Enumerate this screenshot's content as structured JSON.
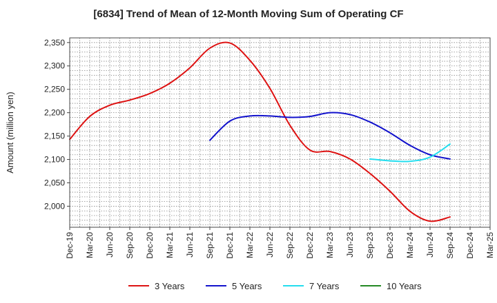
{
  "chart_data": {
    "type": "line",
    "title": "[6834]  Trend of Mean of 12-Month Moving Sum of Operating CF",
    "xlabel": "",
    "ylabel": "Amount (million yen)",
    "ylim": [
      1955,
      2360
    ],
    "yticks": [
      2000,
      2050,
      2100,
      2150,
      2200,
      2250,
      2300,
      2350
    ],
    "grid": true,
    "legend_position": "bottom",
    "categories": [
      "Dec-19",
      "Mar-20",
      "Jun-20",
      "Sep-20",
      "Dec-20",
      "Mar-21",
      "Jun-21",
      "Sep-21",
      "Dec-21",
      "Mar-22",
      "Jun-22",
      "Sep-22",
      "Dec-22",
      "Mar-23",
      "Jun-23",
      "Sep-23",
      "Dec-23",
      "Mar-24",
      "Jun-24",
      "Sep-24",
      "Dec-24",
      "Mar-25"
    ],
    "series": [
      {
        "name": "3 Years",
        "color": "#dd1111",
        "values": [
          2143,
          2192,
          2216,
          2227,
          2241,
          2263,
          2296,
          2338,
          2349,
          2312,
          2252,
          2173,
          2120,
          2117,
          2101,
          2070,
          2032,
          1989,
          1968,
          1977,
          null,
          null
        ]
      },
      {
        "name": "5 Years",
        "color": "#1111cc",
        "values": [
          null,
          null,
          null,
          null,
          null,
          null,
          null,
          2141,
          2182,
          2193,
          2193,
          2190,
          2192,
          2200,
          2196,
          2180,
          2157,
          2130,
          2110,
          2101,
          null,
          null
        ]
      },
      {
        "name": "7 Years",
        "color": "#22ddee",
        "values": [
          null,
          null,
          null,
          null,
          null,
          null,
          null,
          null,
          null,
          null,
          null,
          null,
          null,
          null,
          null,
          2101,
          2097,
          2096,
          2105,
          2133,
          null,
          null
        ]
      },
      {
        "name": "10 Years",
        "color": "#228822",
        "values": [
          null,
          null,
          null,
          null,
          null,
          null,
          null,
          null,
          null,
          null,
          null,
          null,
          null,
          null,
          null,
          null,
          null,
          null,
          null,
          null,
          null,
          null
        ]
      }
    ]
  }
}
